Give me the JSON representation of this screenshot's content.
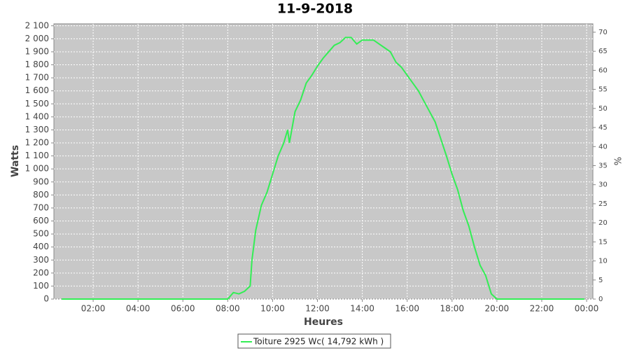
{
  "chart_data": {
    "type": "line",
    "title": "11-9-2018",
    "x_label": "Heures",
    "y_label": "Watts",
    "y2_label": "%",
    "xlim": [
      0.25,
      24.28
    ],
    "xticks": [
      {
        "value": 2,
        "label": "02:00"
      },
      {
        "value": 4,
        "label": "04:00"
      },
      {
        "value": 6,
        "label": "06:00"
      },
      {
        "value": 8,
        "label": "08:00"
      },
      {
        "value": 10,
        "label": "10:00"
      },
      {
        "value": 12,
        "label": "12:00"
      },
      {
        "value": 14,
        "label": "14:00"
      },
      {
        "value": 16,
        "label": "16:00"
      },
      {
        "value": 18,
        "label": "18:00"
      },
      {
        "value": 20,
        "label": "20:00"
      },
      {
        "value": 22,
        "label": "22:00"
      },
      {
        "value": 24,
        "label": "00:00"
      }
    ],
    "ylim": [
      0,
      2115
    ],
    "yticks": [
      0,
      100,
      200,
      300,
      400,
      500,
      600,
      700,
      800,
      900,
      {
        "value": 1000,
        "label": "1 000"
      },
      {
        "value": 1100,
        "label": "1 100"
      },
      {
        "value": 1200,
        "label": "1 200"
      },
      {
        "value": 1300,
        "label": "1 300"
      },
      {
        "value": 1400,
        "label": "1 400"
      },
      {
        "value": 1500,
        "label": "1 500"
      },
      {
        "value": 1600,
        "label": "1 600"
      },
      {
        "value": 1700,
        "label": "1 700"
      },
      {
        "value": 1800,
        "label": "1 800"
      },
      {
        "value": 1900,
        "label": "1 900"
      },
      {
        "value": 2000,
        "label": "2 000"
      },
      {
        "value": 2100,
        "label": "2 100"
      }
    ],
    "y2lim": [
      0,
      72.2
    ],
    "y2ticks": [
      0,
      5,
      10,
      15,
      20,
      25,
      30,
      35,
      40,
      45,
      50,
      55,
      60,
      65,
      70
    ],
    "grid": true,
    "x": [
      0.6,
      8.0,
      8.25,
      8.5,
      8.75,
      9.0,
      9.08,
      9.25,
      9.5,
      9.75,
      10.0,
      10.25,
      10.5,
      10.67,
      10.75,
      11.0,
      11.25,
      11.5,
      11.75,
      12.0,
      12.25,
      12.5,
      12.75,
      13.0,
      13.25,
      13.5,
      13.75,
      14.0,
      14.25,
      14.5,
      14.75,
      15.0,
      15.25,
      15.5,
      15.75,
      16.0,
      16.25,
      16.5,
      16.75,
      17.0,
      17.25,
      17.5,
      17.75,
      18.0,
      18.25,
      18.5,
      18.75,
      19.0,
      19.25,
      19.5,
      19.75,
      20.0,
      23.9
    ],
    "series": [
      {
        "name": "Toiture 2925 Wc( 14,792 kWh )",
        "color": "#33ee55",
        "values": [
          0,
          0,
          50,
          40,
          60,
          100,
          300,
          530,
          720,
          820,
          960,
          1100,
          1200,
          1300,
          1200,
          1440,
          1530,
          1660,
          1720,
          1790,
          1850,
          1900,
          1950,
          1970,
          2010,
          2010,
          1960,
          1990,
          1990,
          1990,
          1960,
          1930,
          1900,
          1820,
          1780,
          1720,
          1660,
          1600,
          1520,
          1440,
          1360,
          1230,
          1100,
          960,
          840,
          680,
          560,
          400,
          260,
          180,
          40,
          0,
          0
        ]
      }
    ]
  }
}
